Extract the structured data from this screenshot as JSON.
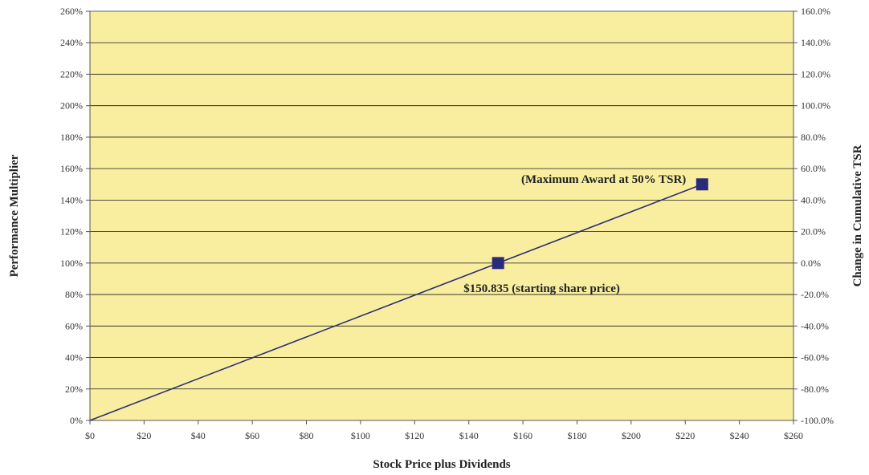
{
  "chart_data": {
    "type": "line",
    "title": "",
    "xlabel": "Stock Price plus Dividends",
    "ylabel": "Performance Multiplier",
    "y2label": "Change in Cumulative TSR",
    "xlim": [
      0,
      260
    ],
    "ylim": [
      0,
      260
    ],
    "y2lim": [
      -100,
      160
    ],
    "grid": true,
    "legend": "none",
    "x_ticks": [
      "$0",
      "$20",
      "$40",
      "$60",
      "$80",
      "$100",
      "$120",
      "$140",
      "$160",
      "$180",
      "$200",
      "$220",
      "$240",
      "$260"
    ],
    "x_tick_values": [
      0,
      20,
      40,
      60,
      80,
      100,
      120,
      140,
      160,
      180,
      200,
      220,
      240,
      260
    ],
    "y_ticks": [
      "0%",
      "20%",
      "40%",
      "60%",
      "80%",
      "100%",
      "120%",
      "140%",
      "160%",
      "180%",
      "200%",
      "220%",
      "240%",
      "260%"
    ],
    "y_tick_values": [
      0,
      20,
      40,
      60,
      80,
      100,
      120,
      140,
      160,
      180,
      200,
      220,
      240,
      260
    ],
    "y2_ticks": [
      "-100.0%",
      "-80.0%",
      "-60.0%",
      "-40.0%",
      "-20.0%",
      "0.0%",
      "20.0%",
      "40.0%",
      "60.0%",
      "80.0%",
      "100.0%",
      "120.0%",
      "140.0%",
      "160.0%"
    ],
    "y2_tick_values": [
      -100,
      -80,
      -60,
      -40,
      -20,
      0,
      20,
      40,
      60,
      80,
      100,
      120,
      140,
      160
    ],
    "series": [
      {
        "x": [
          0,
          150.835,
          226.25
        ],
        "y": [
          0,
          100,
          150
        ],
        "color": "#2e2e78"
      }
    ],
    "markers": [
      {
        "x": 150.835,
        "y": 100,
        "label": "$150.835 (starting share price)",
        "label_position": "below-right"
      },
      {
        "x": 226.25,
        "y": 150,
        "label": "(Maximum Award at 50% TSR)",
        "label_position": "left"
      }
    ],
    "colors": {
      "plot_background": "#f9ee9f",
      "grid": "#1a1a1a",
      "line": "#2e2e78",
      "marker": "#2a2a7a",
      "text": "#333333"
    }
  }
}
